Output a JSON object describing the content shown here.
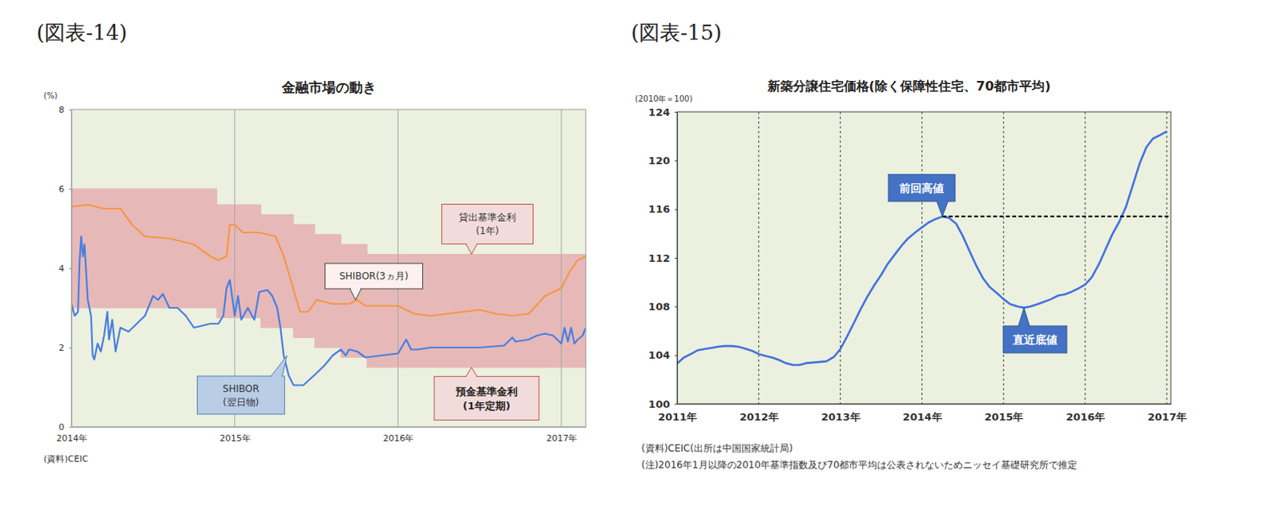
{
  "chart_data": [
    {
      "type": "line",
      "figure_label": "(図表-14)",
      "title": "金融市場の動き",
      "y_label": "(%)",
      "notes": [
        "(資料)CEIC"
      ],
      "xlim": [
        2014,
        2017.15
      ],
      "xticks": [
        {
          "value": 2014,
          "label": "2014年"
        },
        {
          "value": 2015,
          "label": "2015年"
        },
        {
          "value": 2016,
          "label": "2016年"
        },
        {
          "value": 2017,
          "label": "2017年"
        }
      ],
      "ylim": [
        0,
        8
      ],
      "yticks": [
        0,
        2,
        4,
        6,
        8
      ],
      "grid": "x",
      "series": [
        {
          "type": "step",
          "color": "#e6b9b8",
          "x": [
            2014,
            2014.89,
            2015.16,
            2015.36,
            2015.49,
            2015.65,
            2015.81,
            2017.15
          ],
          "values": [
            6,
            5.6,
            5.35,
            5.1,
            4.85,
            4.6,
            4.35,
            4.35
          ]
        },
        {
          "type": "step",
          "color": "#e6b9b8",
          "x": [
            2014,
            2014.89,
            2015.16,
            2015.36,
            2015.49,
            2015.65,
            2015.81,
            2017.15
          ],
          "values": [
            3,
            2.75,
            2.5,
            2.25,
            2,
            1.75,
            1.5,
            1.5
          ]
        },
        {
          "type": "line",
          "color": "#f79646",
          "x": [
            2014.0,
            2014.1,
            2014.2,
            2014.3,
            2014.37,
            2014.45,
            2014.6,
            2014.75,
            2014.85,
            2014.9,
            2014.95,
            2014.97,
            2015.0,
            2015.05,
            2015.15,
            2015.25,
            2015.3,
            2015.35,
            2015.4,
            2015.45,
            2015.5,
            2015.6,
            2015.7,
            2015.75,
            2015.8,
            2016.0,
            2016.05,
            2016.1,
            2016.2,
            2016.3,
            2016.5,
            2016.6,
            2016.7,
            2016.8,
            2016.9,
            2017.0,
            2017.05,
            2017.1,
            2017.15
          ],
          "values": [
            5.55,
            5.6,
            5.5,
            5.5,
            5.1,
            4.8,
            4.75,
            4.6,
            4.3,
            4.2,
            4.3,
            5.1,
            5.1,
            4.9,
            4.9,
            4.8,
            4.3,
            3.6,
            2.9,
            2.9,
            3.2,
            3.1,
            3.1,
            3.2,
            3.05,
            3.05,
            2.95,
            2.85,
            2.8,
            2.85,
            2.95,
            2.85,
            2.8,
            2.85,
            3.3,
            3.5,
            3.9,
            4.2,
            4.3
          ]
        },
        {
          "type": "line",
          "color": "#4a7ee0",
          "x": [
            2014.0,
            2014.02,
            2014.04,
            2014.05,
            2014.06,
            2014.07,
            2014.08,
            2014.1,
            2014.12,
            2014.13,
            2014.14,
            2014.16,
            2014.18,
            2014.2,
            2014.22,
            2014.23,
            2014.25,
            2014.27,
            2014.3,
            2014.35,
            2014.4,
            2014.45,
            2014.5,
            2014.53,
            2014.56,
            2014.6,
            2014.65,
            2014.7,
            2014.75,
            2014.8,
            2014.85,
            2014.9,
            2014.93,
            2014.95,
            2014.97,
            2015.0,
            2015.02,
            2015.04,
            2015.08,
            2015.12,
            2015.15,
            2015.2,
            2015.23,
            2015.26,
            2015.28,
            2015.3,
            2015.33,
            2015.36,
            2015.42,
            2015.46,
            2015.5,
            2015.55,
            2015.6,
            2015.65,
            2015.68,
            2015.7,
            2015.75,
            2015.8,
            2015.9,
            2016.0,
            2016.05,
            2016.08,
            2016.12,
            2016.2,
            2016.3,
            2016.5,
            2016.65,
            2016.7,
            2016.72,
            2016.8,
            2016.85,
            2016.9,
            2016.95,
            2017.0,
            2017.02,
            2017.04,
            2017.06,
            2017.08,
            2017.1,
            2017.13,
            2017.15
          ],
          "values": [
            3.1,
            2.8,
            2.9,
            4.2,
            4.8,
            4.3,
            4.6,
            3.2,
            2.8,
            1.8,
            1.7,
            2.1,
            1.9,
            2.3,
            2.9,
            2.2,
            2.7,
            1.9,
            2.5,
            2.4,
            2.6,
            2.8,
            3.3,
            3.2,
            3.35,
            3.0,
            3.0,
            2.8,
            2.5,
            2.55,
            2.6,
            2.6,
            2.8,
            3.5,
            3.7,
            2.8,
            3.3,
            2.7,
            3.0,
            2.7,
            3.4,
            3.45,
            3.3,
            3.0,
            2.5,
            1.8,
            1.3,
            1.05,
            1.05,
            1.2,
            1.35,
            1.55,
            1.8,
            1.95,
            1.8,
            1.95,
            1.9,
            1.75,
            1.8,
            1.85,
            2.2,
            1.95,
            1.95,
            2.0,
            2.0,
            2.0,
            2.05,
            2.25,
            2.15,
            2.2,
            2.3,
            2.35,
            2.3,
            2.1,
            2.5,
            2.15,
            2.5,
            2.1,
            2.2,
            2.3,
            2.5
          ]
        }
      ],
      "annotations": [
        {
          "text": [
            "貸出基準金利",
            "(1年)"
          ],
          "x": 2016.45,
          "y": 4.35
        },
        {
          "text": [
            "SHIBOR(3ヵ月)"
          ],
          "x": 2015.74,
          "y": 3.2
        },
        {
          "text": [
            "SHIBOR",
            "(翌日物)"
          ],
          "x": 2015.32,
          "y": 1.8
        },
        {
          "text": [
            "預金基準金利",
            "(1年定期)"
          ],
          "x": 2016.45,
          "y": 1.5
        }
      ]
    },
    {
      "type": "line",
      "figure_label": "(図表-15)",
      "title": "新築分譲住宅価格(除く保障性住宅、70都市平均)",
      "y_label": "(2010年＝100)",
      "notes": [
        "(資料)CEIC(出所は中国国家統計局)",
        "(注)2016年1月以降の2010年基準指数及び70都市平均は公表されないためニッセイ基礎研究所で推定"
      ],
      "xlim": [
        2011,
        2017.05
      ],
      "xticks": [
        {
          "value": 2011,
          "label": "2011年"
        },
        {
          "value": 2012,
          "label": "2012年"
        },
        {
          "value": 2013,
          "label": "2013年"
        },
        {
          "value": 2014,
          "label": "2014年"
        },
        {
          "value": 2015,
          "label": "2015年"
        },
        {
          "value": 2016,
          "label": "2016年"
        },
        {
          "value": 2017,
          "label": "2017年"
        }
      ],
      "ylim": [
        100,
        124
      ],
      "yticks": [
        100,
        104,
        108,
        112,
        116,
        120,
        124
      ],
      "grid": "x",
      "series": [
        {
          "type": "line",
          "color": "#4472e0",
          "x": [
            2011.0,
            2011.08,
            2011.17,
            2011.25,
            2011.33,
            2011.42,
            2011.5,
            2011.58,
            2011.67,
            2011.75,
            2011.83,
            2011.92,
            2012.0,
            2012.08,
            2012.17,
            2012.25,
            2012.33,
            2012.42,
            2012.5,
            2012.58,
            2012.67,
            2012.75,
            2012.83,
            2012.92,
            2013.0,
            2013.08,
            2013.17,
            2013.25,
            2013.33,
            2013.42,
            2013.5,
            2013.58,
            2013.67,
            2013.75,
            2013.83,
            2013.92,
            2014.0,
            2014.08,
            2014.17,
            2014.25,
            2014.33,
            2014.42,
            2014.5,
            2014.58,
            2014.67,
            2014.75,
            2014.83,
            2014.92,
            2015.0,
            2015.08,
            2015.17,
            2015.25,
            2015.33,
            2015.42,
            2015.5,
            2015.58,
            2015.67,
            2015.75,
            2015.83,
            2015.92,
            2016.0,
            2016.08,
            2016.17,
            2016.25,
            2016.33,
            2016.42,
            2016.5,
            2016.58,
            2016.67,
            2016.75,
            2016.83,
            2016.92,
            2017.0
          ],
          "values": [
            103.3,
            103.8,
            104.1,
            104.4,
            104.5,
            104.6,
            104.7,
            104.75,
            104.75,
            104.7,
            104.55,
            104.35,
            104.1,
            103.95,
            103.8,
            103.6,
            103.35,
            103.2,
            103.2,
            103.35,
            103.4,
            103.45,
            103.5,
            103.85,
            104.5,
            105.5,
            106.7,
            107.8,
            108.8,
            109.8,
            110.6,
            111.5,
            112.3,
            113.0,
            113.6,
            114.1,
            114.5,
            114.9,
            115.2,
            115.4,
            115.3,
            114.8,
            113.8,
            112.6,
            111.3,
            110.3,
            109.6,
            109.1,
            108.6,
            108.2,
            108.0,
            107.9,
            108.0,
            108.2,
            108.4,
            108.6,
            108.9,
            109.0,
            109.2,
            109.5,
            109.8,
            110.4,
            111.5,
            112.7,
            113.9,
            115.0,
            116.2,
            117.9,
            119.8,
            121.1,
            121.8,
            122.1,
            122.4
          ]
        }
      ],
      "hline": {
        "y": 115.4,
        "x": [
          2014.25,
          2017.05
        ],
        "line_style": "dashed",
        "color": "#000000"
      },
      "annotations": [
        {
          "text": [
            "前回高値"
          ],
          "x": 2014.25,
          "y": 115.4
        },
        {
          "text": [
            "直近底値"
          ],
          "x": 2015.25,
          "y": 107.9
        }
      ]
    }
  ]
}
